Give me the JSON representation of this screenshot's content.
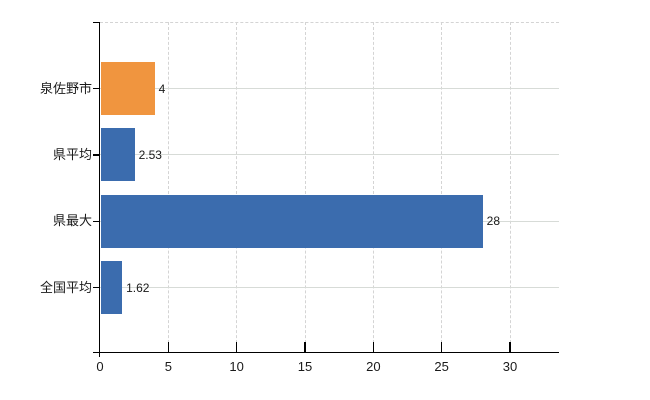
{
  "chart_data": {
    "type": "bar",
    "orientation": "horizontal",
    "title": "",
    "xlabel": "",
    "ylabel": "",
    "categories": [
      "泉佐野市",
      "県平均",
      "県最大",
      "全国平均"
    ],
    "values": [
      4,
      2.53,
      28,
      1.62
    ],
    "value_labels": [
      "4",
      "2.53",
      "28",
      "1.62"
    ],
    "series": [
      {
        "name": "",
        "values": [
          4,
          2.53,
          28,
          1.62
        ]
      }
    ],
    "x_ticks": [
      0,
      5,
      10,
      15,
      20,
      25,
      30
    ],
    "x_tick_labels": [
      "0",
      "5",
      "10",
      "15",
      "20",
      "25",
      "30"
    ],
    "xlim": [
      0,
      33.6
    ],
    "grid": true,
    "legend_position": "none",
    "bar_colors": [
      "#f0953f",
      "#3b6cae",
      "#3b6cae",
      "#3b6cae"
    ],
    "colors": {
      "highlight_bar": "#f0953f",
      "default_bar": "#3b6cae",
      "vertical_grid_line": "#d4d4d4",
      "horizontal_grid_line": "#d7dbd7",
      "axis_line": "#000000",
      "text": "#1a1a1a",
      "background": "#ffffff"
    }
  }
}
